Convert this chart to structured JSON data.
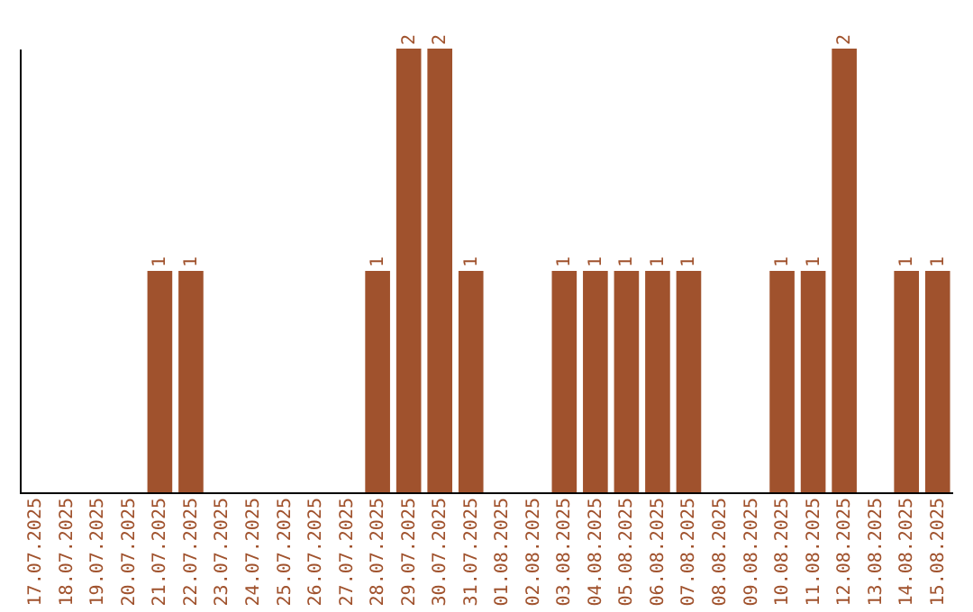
{
  "chart_data": {
    "type": "bar",
    "categories": [
      "17.07.2025",
      "18.07.2025",
      "19.07.2025",
      "20.07.2025",
      "21.07.2025",
      "22.07.2025",
      "23.07.2025",
      "24.07.2025",
      "25.07.2025",
      "26.07.2025",
      "27.07.2025",
      "28.07.2025",
      "29.07.2025",
      "30.07.2025",
      "31.07.2025",
      "01.08.2025",
      "02.08.2025",
      "03.08.2025",
      "04.08.2025",
      "05.08.2025",
      "06.08.2025",
      "07.08.2025",
      "08.08.2025",
      "09.08.2025",
      "10.08.2025",
      "11.08.2025",
      "12.08.2025",
      "13.08.2025",
      "14.08.2025",
      "15.08.2025"
    ],
    "values": [
      0,
      0,
      0,
      0,
      1,
      1,
      0,
      0,
      0,
      0,
      0,
      1,
      2,
      2,
      1,
      0,
      0,
      1,
      1,
      1,
      1,
      1,
      0,
      0,
      1,
      1,
      2,
      0,
      1,
      1
    ],
    "value_labels": [
      null,
      null,
      null,
      null,
      "1",
      "1",
      null,
      null,
      null,
      null,
      null,
      "1",
      "2",
      "2",
      "1",
      null,
      null,
      "1",
      "1",
      "1",
      "1",
      "1",
      null,
      null,
      "1",
      "1",
      "2",
      null,
      "1",
      "1"
    ],
    "color": "#a0522d",
    "ylim": [
      0,
      2
    ],
    "tick_labels": "x",
    "grid": false
  }
}
